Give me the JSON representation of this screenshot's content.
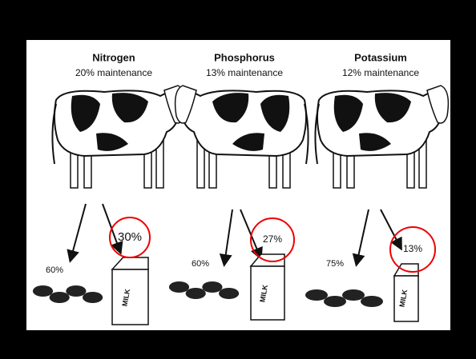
{
  "columns": [
    {
      "nutrient": "Nitrogen",
      "maintenance": "20% maintenance",
      "manure_share": "60%",
      "milk_share": "30%",
      "carton_label": "MILK"
    },
    {
      "nutrient": "Phosphorus",
      "maintenance": "13% maintenance",
      "manure_share": "60%",
      "milk_share": "27%",
      "carton_label": "MILK"
    },
    {
      "nutrient": "Potassium",
      "maintenance": "12% maintenance",
      "manure_share": "75%",
      "milk_share": "13%",
      "carton_label": "MILK"
    }
  ]
}
